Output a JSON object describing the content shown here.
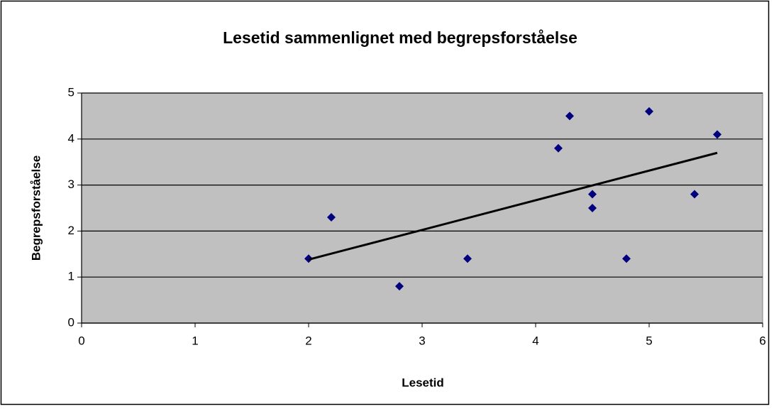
{
  "chart_data": {
    "type": "scatter",
    "title": "Lesetid sammenlignet med begrepsforståelse",
    "xlabel": "Lesetid",
    "ylabel": "Begrepsforståelse",
    "x": [
      2.0,
      2.2,
      2.8,
      3.4,
      4.2,
      4.3,
      4.5,
      4.5,
      4.8,
      5.0,
      5.4,
      5.6
    ],
    "series": [
      {
        "color": "#000080",
        "values": [
          1.4,
          2.3,
          0.8,
          1.4,
          3.8,
          4.5,
          2.8,
          2.5,
          1.4,
          4.6,
          2.8,
          4.1
        ]
      }
    ],
    "trendline": {
      "color": "#000000",
      "x": [
        2.0,
        5.6
      ],
      "values": [
        1.38,
        3.7
      ]
    },
    "xlim": [
      0,
      6
    ],
    "xticks": [
      0,
      1,
      2,
      3,
      4,
      5,
      6
    ],
    "ylim": [
      0,
      5
    ],
    "yticks": [
      0,
      1,
      2,
      3,
      4,
      5
    ],
    "grid": true
  }
}
